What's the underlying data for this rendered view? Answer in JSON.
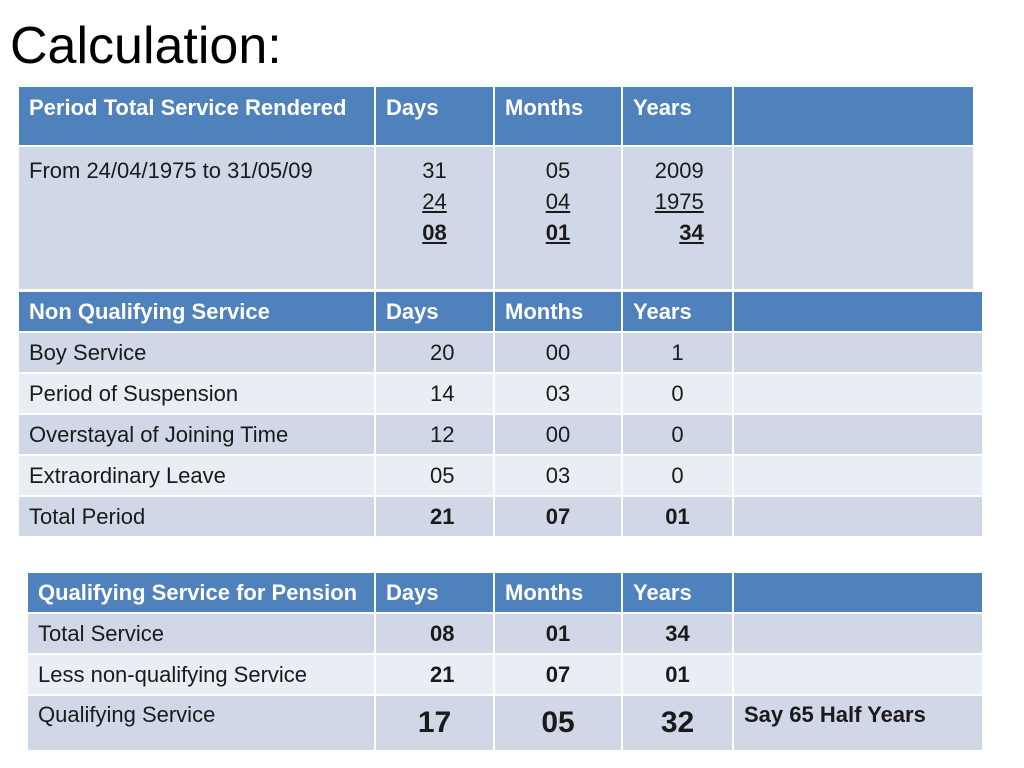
{
  "title": "Calculation:",
  "table1": {
    "headers": [
      "Period Total Service Rendered",
      "Days",
      "Months",
      "Years",
      ""
    ],
    "row": {
      "label": "From  24/04/1975 to 31/05/09",
      "days": [
        "31",
        "24",
        "08"
      ],
      "months": [
        "05",
        "04",
        "01"
      ],
      "years": [
        "2009",
        "1975",
        "34"
      ]
    }
  },
  "table2": {
    "headers": [
      "Non Qualifying Service",
      "Days",
      "Months",
      "Years",
      ""
    ],
    "rows": [
      {
        "label": "Boy Service",
        "days": "20",
        "months": "00",
        "years": "1"
      },
      {
        "label": "Period of Suspension",
        "days": "14",
        "months": "03",
        "years": "0"
      },
      {
        "label": "Overstayal of Joining Time",
        "days": "12",
        "months": "00",
        "years": "0"
      },
      {
        "label": "Extraordinary Leave",
        "days": "05",
        "months": "03",
        "years": "0"
      },
      {
        "label": "Total Period",
        "days": "21",
        "months": "07",
        "years": "01"
      }
    ]
  },
  "table3": {
    "headers": [
      "Qualifying Service for Pension",
      "Days",
      "Months",
      "Years",
      ""
    ],
    "rows": [
      {
        "label": "Total Service",
        "days": "08",
        "months": "01",
        "years": "34",
        "note": ""
      },
      {
        "label": "Less non-qualifying Service",
        "days": "21",
        "months": "07",
        "years": "01",
        "note": ""
      },
      {
        "label": "Qualifying Service",
        "days": "17",
        "months": "05",
        "years": "32",
        "note": "Say 65 Half Years"
      }
    ]
  },
  "colors": {
    "header": "#4f81bd",
    "row_dark": "#d0d8e8",
    "row_light": "#e9edf4"
  }
}
